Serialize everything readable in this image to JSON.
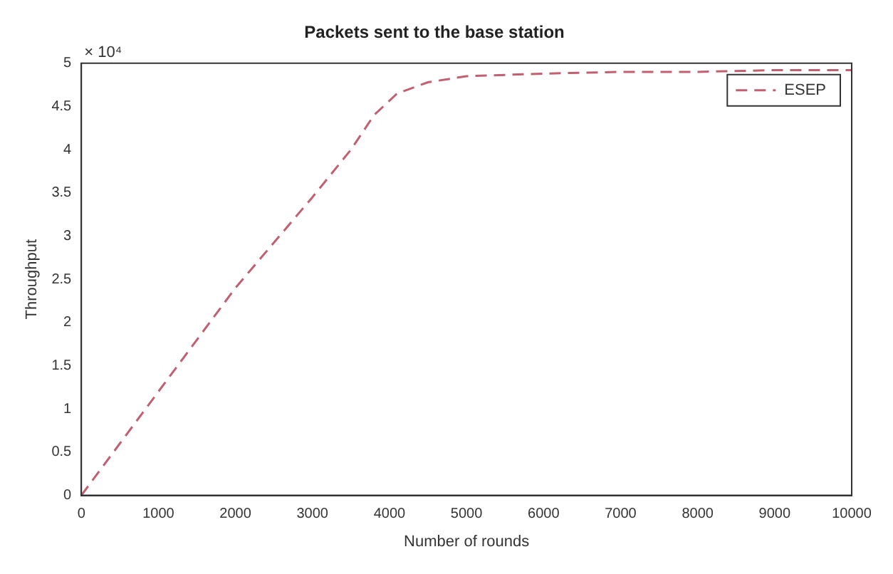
{
  "chart_data": {
    "type": "line",
    "title": "Packets sent to the base station",
    "xlabel": "Number of rounds",
    "ylabel": "Throughput",
    "annotations": [
      "× 10⁴"
    ],
    "x": [
      0,
      1000,
      2000,
      3000,
      3500,
      3800,
      4100,
      4500,
      5000,
      6000,
      7000,
      8000,
      9000,
      10000
    ],
    "series": [
      {
        "name": "ESEP",
        "color": "#c06070",
        "values": [
          0,
          1.2,
          2.4,
          3.45,
          4.0,
          4.4,
          4.65,
          4.78,
          4.85,
          4.88,
          4.9,
          4.9,
          4.92,
          4.92
        ]
      }
    ],
    "xlim": [
      0,
      10000
    ],
    "xticks": [
      0,
      1000,
      2000,
      3000,
      4000,
      5000,
      6000,
      7000,
      8000,
      9000,
      10000
    ],
    "ylim": [
      0,
      5
    ],
    "yticks": [
      0,
      0.5,
      1,
      1.5,
      2,
      2.5,
      3,
      3.5,
      4,
      4.5,
      5
    ],
    "grid": false,
    "legend": "top right",
    "line_style": "dashed",
    "marker": "none"
  }
}
